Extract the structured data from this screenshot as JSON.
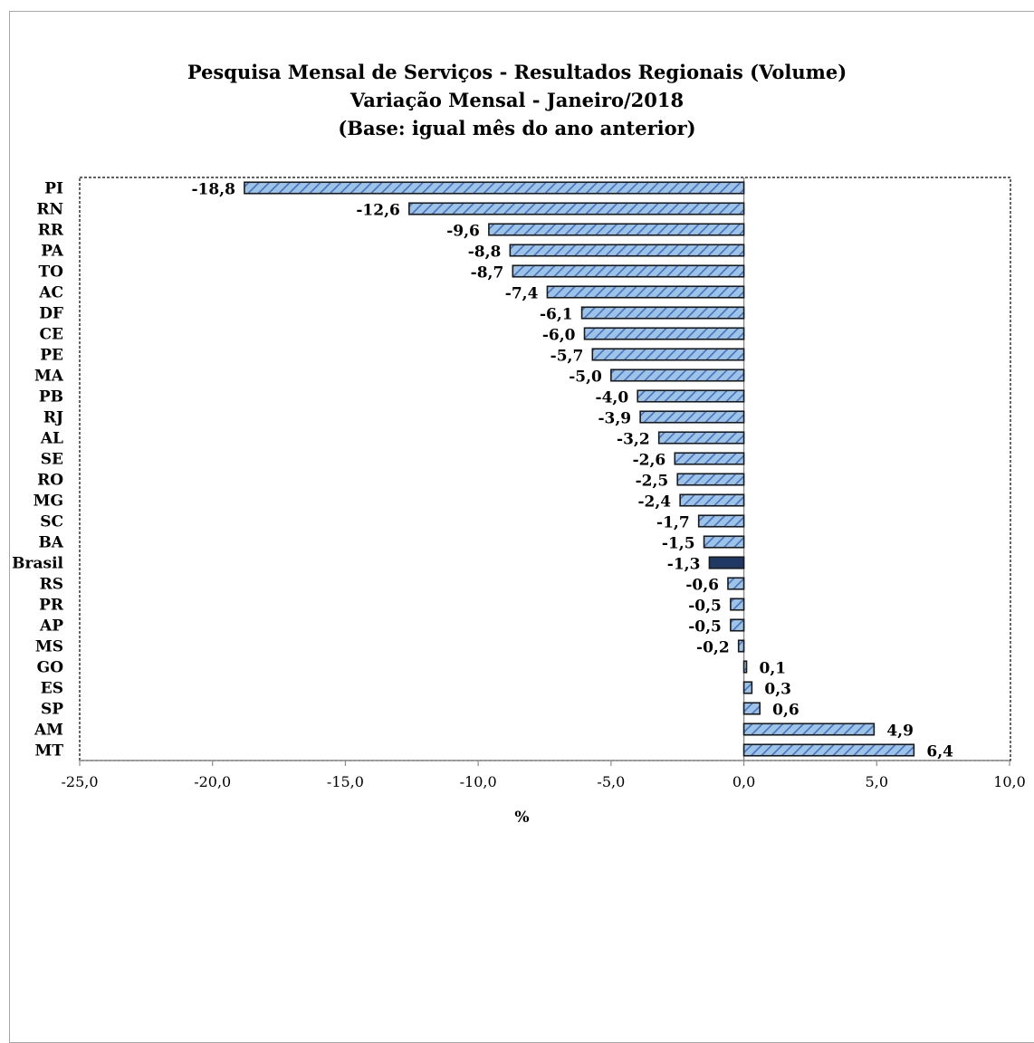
{
  "chart_data": {
    "type": "bar",
    "orientation": "horizontal",
    "title": "Pesquisa  Mensal de Serviços - Resultados Regionais (Volume)",
    "subtitle_lines": [
      "Variação Mensal - Janeiro/2018",
      "(Base: igual mês do ano anterior)"
    ],
    "xlabel": "%",
    "ylabel": "",
    "xlim": [
      -25,
      10
    ],
    "x_ticks": [
      -25,
      -20,
      -15,
      -10,
      -5,
      0,
      5,
      10
    ],
    "x_tick_labels": [
      "-25,0",
      "-20,0",
      "-15,0",
      "-10,0",
      "-5,0",
      "0,0",
      "5,0",
      "10,0"
    ],
    "grid": false,
    "legend": "none",
    "categories": [
      "PI",
      "RN",
      "RR",
      "PA",
      "TO",
      "AC",
      "DF",
      "CE",
      "PE",
      "MA",
      "PB",
      "RJ",
      "AL",
      "SE",
      "RO",
      "MG",
      "SC",
      "BA",
      "Brasil",
      "RS",
      "PR",
      "AP",
      "MS",
      "GO",
      "ES",
      "SP",
      "AM",
      "MT"
    ],
    "values": [
      -18.8,
      -12.6,
      -9.6,
      -8.8,
      -8.7,
      -7.4,
      -6.1,
      -6.0,
      -5.7,
      -5.0,
      -4.0,
      -3.9,
      -3.2,
      -2.6,
      -2.5,
      -2.4,
      -1.7,
      -1.5,
      -1.3,
      -0.6,
      -0.5,
      -0.5,
      -0.2,
      0.1,
      0.3,
      0.6,
      4.9,
      6.4
    ],
    "value_labels": [
      "-18,8",
      "-12,6",
      "-9,6",
      "-8,8",
      "-8,7",
      "-7,4",
      "-6,1",
      "-6,0",
      "-5,7",
      "-5,0",
      "-4,0",
      "-3,9",
      "-3,2",
      "-2,6",
      "-2,5",
      "-2,4",
      "-1,7",
      "-1,5",
      "-1,3",
      "-0,6",
      "-0,5",
      "-0,5",
      "-0,2",
      "0,1",
      "0,3",
      "0,6",
      "4,9",
      "6,4"
    ],
    "highlight_category": "Brasil",
    "colors": {
      "bar_fill": "#9DC3E6",
      "bar_hatch": "#4472C4",
      "bar_stroke": "#1a1a1a",
      "highlight_fill": "#1F3864",
      "axis": "#8c8c8c",
      "plot_border": "#000000"
    }
  }
}
